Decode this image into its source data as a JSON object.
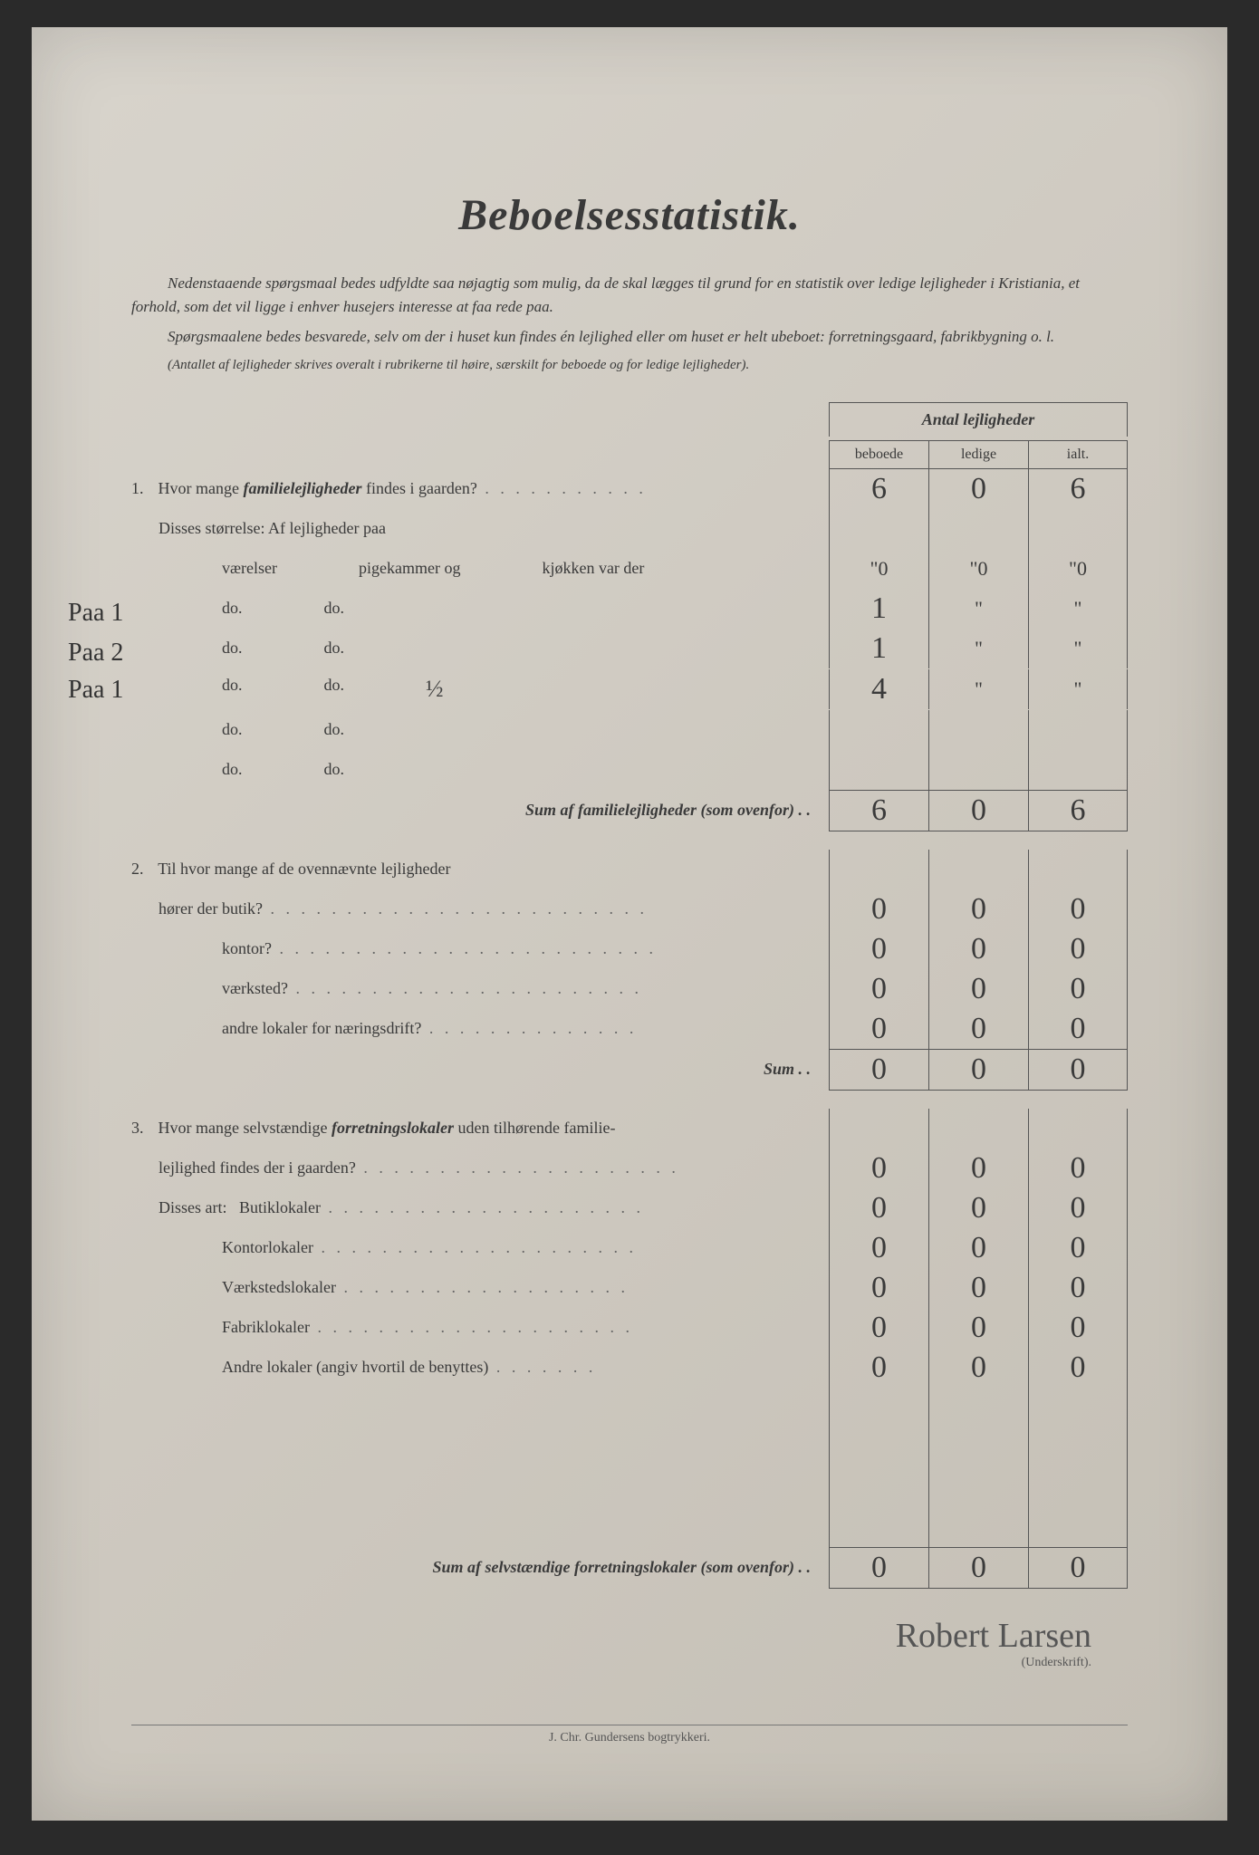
{
  "title": "Beboelsesstatistik.",
  "intro1": "Nedenstaaende spørgsmaal bedes udfyldte saa nøjagtig som mulig, da de skal lægges til grund for en statistik over ledige lejligheder i Kristiania, et forhold, som det vil ligge i enhver husejers interesse at faa rede paa.",
  "intro2": "Spørgsmaalene bedes besvarede, selv om der i huset kun findes én lejlighed eller om huset er helt ubeboet: forretningsgaard, fabrikbygning o. l.",
  "intro3": "(Antallet af lejligheder skrives overalt i rubrikerne til høire, særskilt for beboede og for ledige lejligheder).",
  "header": {
    "group": "Antal lejligheder",
    "col1": "beboede",
    "col2": "ledige",
    "col3": "ialt."
  },
  "q1": {
    "num": "1.",
    "text": "Hvor mange ",
    "bold": "familielejligheder",
    "text2": " findes i gaarden?",
    "v1": "6",
    "v2": "0",
    "v3": "6",
    "sub": "Disses størrelse:  Af lejligheder paa",
    "cols": {
      "c1": "værelser",
      "c2": "pigekammer og",
      "c3": "kjøkken var der"
    },
    "rows": [
      {
        "margin": "",
        "c1": "",
        "c2": "",
        "c3": "",
        "v1": "\"0",
        "v2": "\"0",
        "v3": "\"0"
      },
      {
        "margin": "Paa 1",
        "c1": "do.",
        "c2": "do.",
        "c3": "",
        "v1": "1",
        "v2": "\"",
        "v3": "\""
      },
      {
        "margin": "Paa 2",
        "c1": "do.",
        "c2": "do.",
        "c3": "",
        "v1": "1",
        "v2": "\"",
        "v3": "\""
      },
      {
        "margin": "Paa 1",
        "c1": "do.",
        "c2": "do.",
        "c3": "½",
        "v1": "4",
        "v2": "\"",
        "v3": "\""
      },
      {
        "margin": "",
        "c1": "do.",
        "c2": "do.",
        "c3": "",
        "v1": "",
        "v2": "",
        "v3": ""
      },
      {
        "margin": "",
        "c1": "do.",
        "c2": "do.",
        "c3": "",
        "v1": "",
        "v2": "",
        "v3": ""
      }
    ],
    "sum_label": "Sum af familielejligheder (som ovenfor) . .",
    "sum": {
      "v1": "6",
      "v2": "0",
      "v3": "6"
    }
  },
  "q2": {
    "num": "2.",
    "text": "Til hvor mange af de ovennævnte lejligheder",
    "rows": [
      {
        "label": "hører der butik?",
        "v1": "0",
        "v2": "0",
        "v3": "0"
      },
      {
        "label": "kontor?",
        "v1": "0",
        "v2": "0",
        "v3": "0"
      },
      {
        "label": "værksted?",
        "v1": "0",
        "v2": "0",
        "v3": "0"
      },
      {
        "label": "andre lokaler for næringsdrift?",
        "v1": "0",
        "v2": "0",
        "v3": "0"
      }
    ],
    "sum_label": "Sum . .",
    "sum": {
      "v1": "0",
      "v2": "0",
      "v3": "0"
    }
  },
  "q3": {
    "num": "3.",
    "text1": "Hvor mange selvstændige ",
    "bold": "forretningslokaler",
    "text2": " uden tilhørende familie-",
    "text3": "lejlighed findes der i gaarden?",
    "row0": {
      "v1": "0",
      "v2": "0",
      "v3": "0"
    },
    "sub": "Disses art:",
    "rows": [
      {
        "label": "Butiklokaler",
        "v1": "0",
        "v2": "0",
        "v3": "0"
      },
      {
        "label": "Kontorlokaler",
        "v1": "0",
        "v2": "0",
        "v3": "0"
      },
      {
        "label": "Værkstedslokaler",
        "v1": "0",
        "v2": "0",
        "v3": "0"
      },
      {
        "label": "Fabriklokaler",
        "v1": "0",
        "v2": "0",
        "v3": "0"
      },
      {
        "label": "Andre lokaler (angiv hvortil de benyttes)",
        "v1": "0",
        "v2": "0",
        "v3": "0"
      }
    ],
    "sum_label": "Sum af selvstændige forretningslokaler (som ovenfor) . .",
    "sum": {
      "v1": "0",
      "v2": "0",
      "v3": "0"
    }
  },
  "signature": {
    "name": "Robert Larsen",
    "label": "(Underskrift)."
  },
  "footer": "J. Chr. Gundersens bogtrykkeri."
}
